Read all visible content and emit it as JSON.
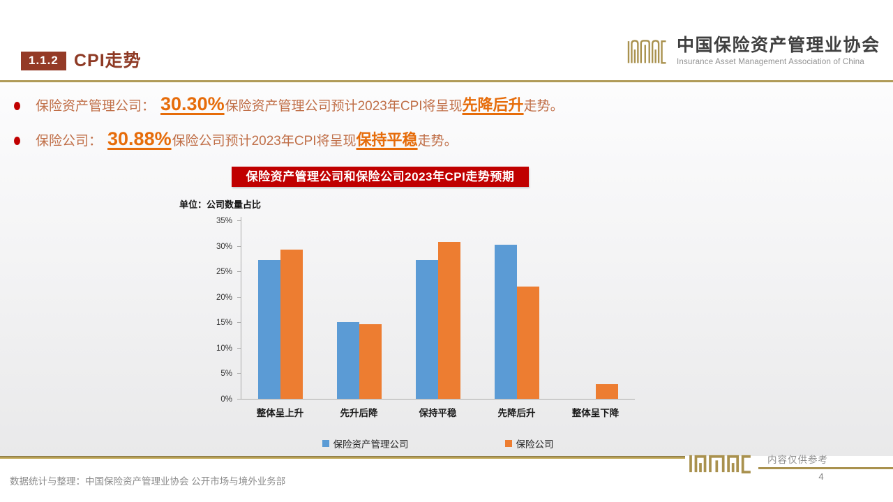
{
  "header": {
    "section_number": "1.1.2",
    "title": "CPI走势"
  },
  "logo": {
    "cn": "中国保险资产管理业协会",
    "en": "Insurance Asset Management Association of China",
    "seal_icon": "iamac-seal",
    "wordmark_icon": "iamac-wordmark"
  },
  "bullets": [
    {
      "label": "保险资产管理公司：",
      "value": "30.30%",
      "text_before": "保险资产管理公司预计2023年CPI将呈现",
      "emphasis": "先降后升",
      "text_after": "走势。"
    },
    {
      "label": "保险公司：",
      "value": "30.88%",
      "text_before": "保险公司预计2023年CPI将呈现",
      "emphasis": "保持平稳",
      "text_after": "走势。"
    }
  ],
  "chart_banner": "保险资产管理公司和保险公司2023年CPI走势预期",
  "chart_data": {
    "type": "bar",
    "title": "保险资产管理公司和保险公司2023年CPI走势预期",
    "unit_label": "单位：公司数量占比",
    "categories": [
      "整体呈上升",
      "先升后降",
      "保持平稳",
      "先降后升",
      "整体呈下降"
    ],
    "series": [
      {
        "name": "保险资产管理公司",
        "color": "#5B9BD5",
        "values": [
          27.27,
          15.15,
          27.27,
          30.3,
          0
        ]
      },
      {
        "name": "保险公司",
        "color": "#ED7D31",
        "values": [
          29.41,
          14.71,
          30.88,
          22.06,
          2.94
        ]
      }
    ],
    "ylabel": "公司数量占比",
    "ylim": [
      0,
      35
    ],
    "ytick_step": 5,
    "ytick_labels": [
      "0%",
      "5%",
      "10%",
      "15%",
      "20%",
      "25%",
      "30%",
      "35%"
    ],
    "grid": false,
    "legend_position": "bottom"
  },
  "footer": {
    "source": "数据统计与整理：中国保险资产管理业协会 公开市场与境外业务部",
    "disclaimer": "内容仅供参考",
    "page_number": "4"
  },
  "colors": {
    "accent_brown": "#8E3A25",
    "badge_bg": "#943A26",
    "body_text": "#C06F48",
    "emphasis_orange": "#E66C0A",
    "banner_red": "#C00000",
    "series_blue": "#5B9BD5",
    "series_orange": "#ED7D31",
    "gold_line": "#B09B58",
    "logo_gold": "#A9914E"
  }
}
